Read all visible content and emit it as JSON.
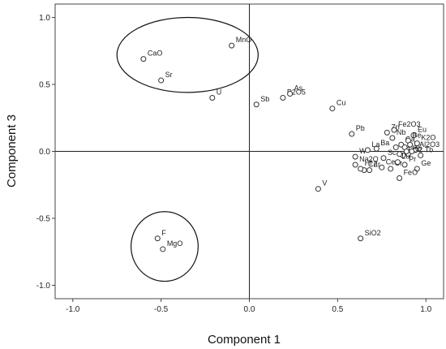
{
  "chart_data": {
    "type": "scatter",
    "title": "",
    "xlabel": "Component 1",
    "ylabel": "Component 3",
    "xlim": [
      -1.1,
      1.1
    ],
    "ylim": [
      -1.1,
      1.1
    ],
    "x_ticks": [
      "-1.0",
      "-0.5",
      "0.0",
      "0.5",
      "1.0"
    ],
    "y_ticks": [
      "1.0",
      "0.5",
      "0.0",
      "-0.5",
      "-1.0"
    ],
    "x_tick_values": [
      -1.0,
      -0.5,
      0.0,
      0.5,
      1.0
    ],
    "y_tick_values": [
      1.0,
      0.5,
      0.0,
      -0.5,
      -1.0
    ],
    "grid": false,
    "reference_lines": {
      "x": 0,
      "y": 0
    },
    "marker": "open-circle",
    "points": [
      {
        "label": "CaO",
        "x": -0.6,
        "y": 0.69
      },
      {
        "label": "Sr",
        "x": -0.5,
        "y": 0.53
      },
      {
        "label": "MnO",
        "x": -0.1,
        "y": 0.79
      },
      {
        "label": "U",
        "x": -0.21,
        "y": 0.4
      },
      {
        "label": "Sb",
        "x": 0.04,
        "y": 0.35
      },
      {
        "label": "P2O5",
        "x": 0.19,
        "y": 0.4
      },
      {
        "label": "As",
        "x": 0.23,
        "y": 0.43
      },
      {
        "label": "Cu",
        "x": 0.47,
        "y": 0.32
      },
      {
        "label": "Pb",
        "x": 0.58,
        "y": 0.13
      },
      {
        "label": "Zn",
        "x": 0.78,
        "y": 0.14
      },
      {
        "label": "Fe2O3",
        "x": 0.82,
        "y": 0.16
      },
      {
        "label": "Nb",
        "x": 0.81,
        "y": 0.1
      },
      {
        "label": "Ba",
        "x": 0.72,
        "y": 0.02
      },
      {
        "label": "Ga",
        "x": 0.86,
        "y": 0.05
      },
      {
        "label": "Eu",
        "x": 0.93,
        "y": 0.12
      },
      {
        "label": "Be",
        "x": 0.9,
        "y": 0.08
      },
      {
        "label": "K2O",
        "x": 0.95,
        "y": 0.06
      },
      {
        "label": "Al2O3",
        "x": 0.94,
        "y": 0.01
      },
      {
        "label": "W",
        "x": 0.6,
        "y": -0.04
      },
      {
        "label": "La",
        "x": 0.67,
        "y": 0.01
      },
      {
        "label": "Sc",
        "x": 0.76,
        "y": -0.05
      },
      {
        "label": "TiO2",
        "x": 0.87,
        "y": -0.03
      },
      {
        "label": "Rb",
        "x": 0.9,
        "y": -0.02
      },
      {
        "label": "Tb",
        "x": 0.97,
        "y": -0.03
      },
      {
        "label": "Ce",
        "x": 0.75,
        "y": -0.12
      },
      {
        "label": "Co",
        "x": 0.65,
        "y": -0.14
      },
      {
        "label": "Cr",
        "x": 0.8,
        "y": -0.13
      },
      {
        "label": "Lu",
        "x": 0.84,
        "y": -0.08
      },
      {
        "label": "Pr",
        "x": 0.88,
        "y": -0.1
      },
      {
        "label": "Ge",
        "x": 0.95,
        "y": -0.13
      },
      {
        "label": "Na2O",
        "x": 0.6,
        "y": -0.1
      },
      {
        "label": "Hf",
        "x": 0.63,
        "y": -0.13
      },
      {
        "label": "Zr",
        "x": 0.68,
        "y": -0.14
      },
      {
        "label": "FeO",
        "x": 0.85,
        "y": -0.2
      },
      {
        "label": "V",
        "x": 0.39,
        "y": -0.28
      },
      {
        "label": "SiO2",
        "x": 0.63,
        "y": -0.65
      },
      {
        "label": "F",
        "x": -0.52,
        "y": -0.65
      },
      {
        "label": "MgO",
        "x": -0.49,
        "y": -0.73
      }
    ],
    "unlabeled_points": [
      {
        "x": 0.83,
        "y": 0.03
      },
      {
        "x": 0.88,
        "y": 0.03
      },
      {
        "x": 0.91,
        "y": 0.05
      },
      {
        "x": 0.92,
        "y": 0.0
      },
      {
        "x": 0.85,
        "y": -0.02
      },
      {
        "x": 0.89,
        "y": 0.0
      }
    ],
    "annotations": [
      {
        "shape": "ellipse",
        "cx": -0.35,
        "cy": 0.72,
        "rx": 0.4,
        "ry": 0.28
      },
      {
        "shape": "ellipse",
        "cx": -0.48,
        "cy": -0.71,
        "rx": 0.19,
        "ry": 0.26
      }
    ]
  }
}
